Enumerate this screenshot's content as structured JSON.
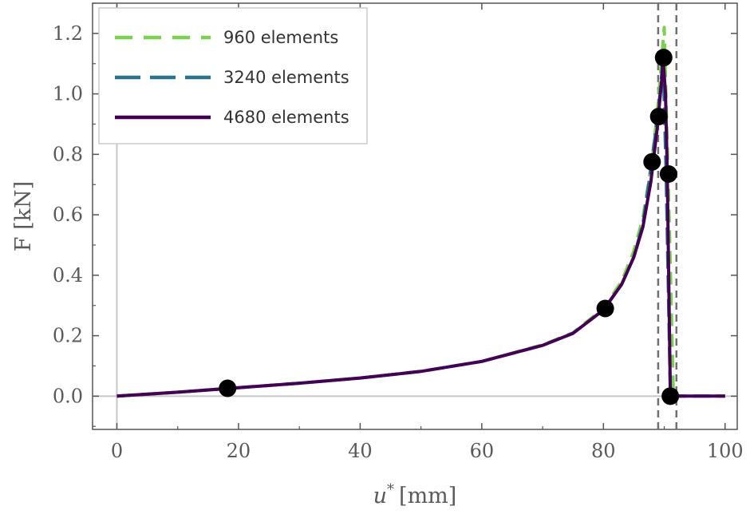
{
  "chart_data": {
    "type": "line",
    "xlabel": "u* [mm]",
    "xlabel_parts": {
      "symbol": "u",
      "superscript": "*",
      "unit": "[mm]"
    },
    "ylabel": "F [kN]",
    "xlim": [
      -4,
      102
    ],
    "ylim": [
      -0.11,
      1.3
    ],
    "x_ticks": [
      0,
      20,
      40,
      60,
      80,
      100
    ],
    "x_tick_labels": [
      "0",
      "20",
      "40",
      "60",
      "80",
      "100"
    ],
    "y_ticks": [
      0.0,
      0.2,
      0.4,
      0.6,
      0.8,
      1.0,
      1.2
    ],
    "y_tick_labels": [
      "0.0",
      "0.2",
      "0.4",
      "0.6",
      "0.8",
      "1.0",
      "1.2"
    ],
    "grid": false,
    "legend_position": "top-left",
    "series": [
      {
        "name": "960 elements",
        "color": "#7ad151",
        "style": "dashed",
        "points": [
          [
            0,
            0
          ],
          [
            10,
            0.013
          ],
          [
            20,
            0.028
          ],
          [
            30,
            0.043
          ],
          [
            40,
            0.06
          ],
          [
            50,
            0.082
          ],
          [
            60,
            0.115
          ],
          [
            70,
            0.17
          ],
          [
            75,
            0.21
          ],
          [
            80,
            0.29
          ],
          [
            83,
            0.38
          ],
          [
            85,
            0.48
          ],
          [
            86.5,
            0.59
          ],
          [
            88,
            0.78
          ],
          [
            89,
            0.97
          ],
          [
            90,
            1.22
          ],
          [
            90.8,
            0.6
          ],
          [
            91.5,
            0.0
          ],
          [
            100,
            0.0
          ]
        ]
      },
      {
        "name": "3240 elements",
        "color": "#2c728e",
        "style": "dashed",
        "points": [
          [
            0,
            0
          ],
          [
            10,
            0.013
          ],
          [
            20,
            0.028
          ],
          [
            30,
            0.043
          ],
          [
            40,
            0.06
          ],
          [
            50,
            0.082
          ],
          [
            60,
            0.115
          ],
          [
            70,
            0.168
          ],
          [
            75,
            0.208
          ],
          [
            80,
            0.285
          ],
          [
            83,
            0.37
          ],
          [
            85,
            0.46
          ],
          [
            86.5,
            0.57
          ],
          [
            87.5,
            0.71
          ],
          [
            88.5,
            0.86
          ],
          [
            89.3,
            1.0
          ],
          [
            89.8,
            1.12
          ],
          [
            90.3,
            0.74
          ],
          [
            91,
            0.0
          ],
          [
            100,
            0.0
          ]
        ]
      },
      {
        "name": "4680 elements",
        "color": "#440154",
        "style": "solid",
        "points": [
          [
            0,
            0
          ],
          [
            10,
            0.013
          ],
          [
            20,
            0.028
          ],
          [
            30,
            0.043
          ],
          [
            40,
            0.06
          ],
          [
            50,
            0.082
          ],
          [
            60,
            0.115
          ],
          [
            70,
            0.168
          ],
          [
            75,
            0.208
          ],
          [
            80,
            0.285
          ],
          [
            83,
            0.37
          ],
          [
            85,
            0.46
          ],
          [
            86.5,
            0.56
          ],
          [
            87.8,
            0.71
          ],
          [
            88.8,
            0.88
          ],
          [
            89.6,
            1.05
          ],
          [
            89.8,
            1.12
          ],
          [
            90.2,
            1.0
          ],
          [
            90.5,
            0.74
          ],
          [
            91,
            0.0
          ],
          [
            100,
            0.0
          ]
        ]
      }
    ],
    "markers": [
      {
        "x": 18.2,
        "y": 0.026
      },
      {
        "x": 80.3,
        "y": 0.29
      },
      {
        "x": 88.0,
        "y": 0.775
      },
      {
        "x": 89.1,
        "y": 0.925
      },
      {
        "x": 89.9,
        "y": 1.12
      },
      {
        "x": 90.7,
        "y": 0.735
      },
      {
        "x": 91.0,
        "y": 0.0
      }
    ],
    "marker_color": "#000000",
    "reference_lines": {
      "vertical_dashed": [
        89.0,
        92.0
      ],
      "vertical_dashed_color": "#707070",
      "zero_lines_color": "#c8c8c8"
    }
  }
}
